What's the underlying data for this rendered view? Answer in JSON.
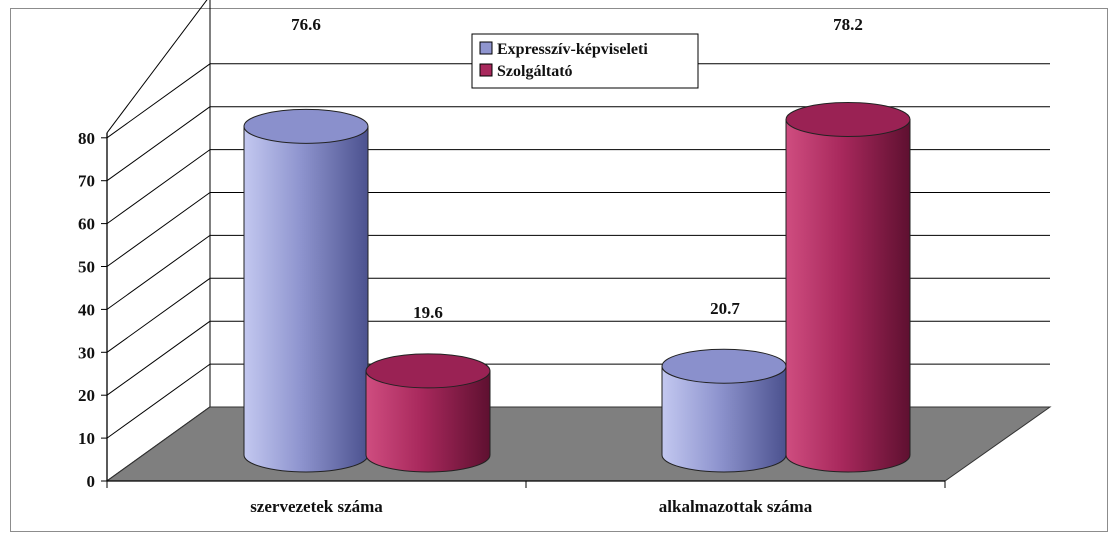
{
  "chart_data": {
    "type": "bar",
    "subtype": "3d-cylinder",
    "categories": [
      "szervezetek száma",
      "alkalmazottak száma"
    ],
    "series": [
      {
        "name": "Expresszív-képviseleti",
        "values": [
          76.6,
          20.7
        ],
        "color": "#8f95cf"
      },
      {
        "name": "Szolgáltató",
        "values": [
          19.6,
          78.2
        ],
        "color": "#a8285c"
      }
    ],
    "data_labels": [
      "76.6",
      "20.7",
      "19.6",
      "78.2"
    ],
    "ylim": [
      0,
      80
    ],
    "yticks": [
      "0",
      "10",
      "20",
      "30",
      "40",
      "50",
      "60",
      "70",
      "80"
    ],
    "grid": true,
    "legend": "top-center",
    "floor_color": "#7f7f7f"
  }
}
